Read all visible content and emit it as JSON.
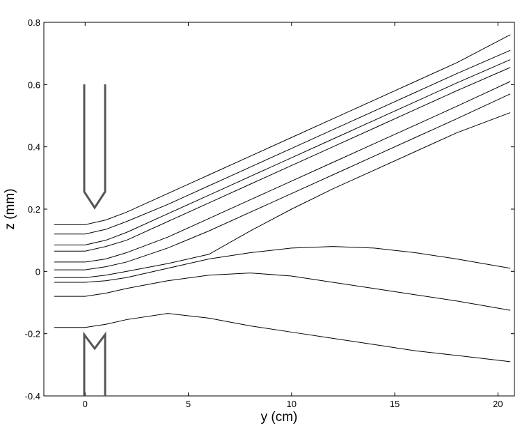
{
  "chart_data": {
    "type": "line",
    "x_label": "y (cm)",
    "y_label": "z (mm)",
    "xlim": [
      -2,
      20.8
    ],
    "ylim": [
      -0.4,
      0.8
    ],
    "xticks": [
      0,
      5,
      10,
      15,
      20
    ],
    "yticks": [
      -0.4,
      -0.2,
      0,
      0.2,
      0.4,
      0.6,
      0.8
    ],
    "grid": false,
    "x": [
      -1.5,
      0,
      1,
      2,
      4,
      6,
      8,
      10,
      12,
      14,
      16,
      18,
      20.6
    ],
    "series": [
      {
        "color": "#000000",
        "values": [
          0.15,
          0.15,
          0.165,
          0.19,
          0.25,
          0.31,
          0.37,
          0.43,
          0.49,
          0.55,
          0.61,
          0.67,
          0.76
        ]
      },
      {
        "color": "#000000",
        "values": [
          0.12,
          0.12,
          0.135,
          0.16,
          0.215,
          0.275,
          0.335,
          0.395,
          0.455,
          0.515,
          0.575,
          0.635,
          0.71
        ]
      },
      {
        "color": "#000000",
        "values": [
          0.085,
          0.085,
          0.1,
          0.125,
          0.185,
          0.245,
          0.305,
          0.365,
          0.425,
          0.485,
          0.545,
          0.605,
          0.68
        ]
      },
      {
        "color": "#000000",
        "values": [
          0.065,
          0.065,
          0.08,
          0.1,
          0.16,
          0.22,
          0.28,
          0.34,
          0.4,
          0.46,
          0.52,
          0.58,
          0.655
        ]
      },
      {
        "color": "#000000",
        "values": [
          0.03,
          0.03,
          0.04,
          0.06,
          0.11,
          0.17,
          0.23,
          0.29,
          0.35,
          0.41,
          0.47,
          0.53,
          0.61
        ]
      },
      {
        "color": "#000000",
        "values": [
          0.005,
          0.005,
          0.015,
          0.03,
          0.075,
          0.13,
          0.19,
          0.25,
          0.31,
          0.37,
          0.43,
          0.49,
          0.57
        ]
      },
      {
        "color": "#000000",
        "values": [
          -0.02,
          -0.02,
          -0.012,
          0.0,
          0.025,
          0.055,
          0.13,
          0.2,
          0.265,
          0.325,
          0.385,
          0.445,
          0.51
        ]
      },
      {
        "color": "#000000",
        "values": [
          -0.035,
          -0.035,
          -0.03,
          -0.02,
          0.01,
          0.04,
          0.06,
          0.075,
          0.08,
          0.075,
          0.06,
          0.04,
          0.01
        ]
      },
      {
        "color": "#000000",
        "values": [
          -0.08,
          -0.08,
          -0.07,
          -0.055,
          -0.03,
          -0.012,
          -0.005,
          -0.015,
          -0.035,
          -0.055,
          -0.075,
          -0.095,
          -0.125
        ]
      },
      {
        "color": "#000000",
        "values": [
          -0.18,
          -0.18,
          -0.17,
          -0.155,
          -0.135,
          -0.15,
          -0.175,
          -0.195,
          -0.215,
          -0.235,
          -0.255,
          -0.27,
          -0.29
        ]
      }
    ]
  }
}
